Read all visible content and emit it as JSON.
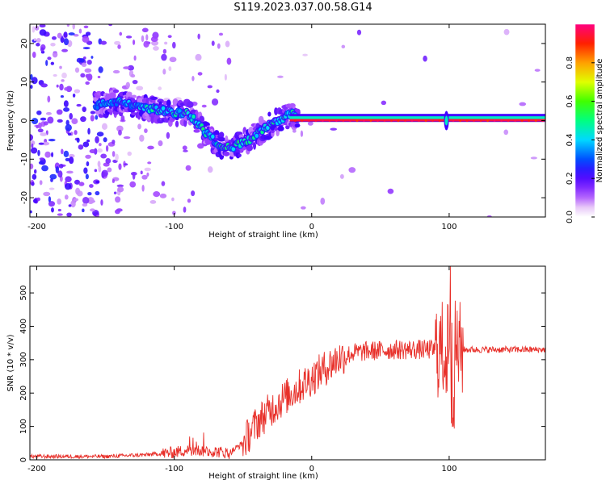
{
  "title": "S119.2023.037.00.58.G14",
  "chart_data": [
    {
      "type": "heatmap",
      "xlabel": "Height of straight line (km)",
      "ylabel": "Frequency (Hz)",
      "xlim": [
        -205,
        170
      ],
      "ylim": [
        -25,
        25
      ],
      "xticks": [
        -200,
        -100,
        0,
        100
      ],
      "yticks": [
        -20,
        -10,
        0,
        10,
        20
      ],
      "colorbar": {
        "label": "Normalized spectral amplitude",
        "range": [
          0,
          1
        ],
        "ticks": [
          "0.0",
          "0.2",
          "0.4",
          "0.6",
          "0.8"
        ]
      },
      "ridge": {
        "x": [
          -155,
          -145,
          -130,
          -115,
          -100,
          -90,
          -82,
          -75,
          -68,
          -60,
          -52,
          -45,
          -38,
          -30,
          -22,
          -15,
          -10,
          0,
          50,
          95,
          100,
          110,
          140,
          170
        ],
        "y": [
          4,
          5,
          4,
          3,
          2,
          2,
          -1,
          -4,
          -6,
          -7,
          -6,
          -5,
          -3,
          -1,
          0,
          2,
          0,
          0,
          0,
          0,
          0,
          0,
          0,
          0
        ]
      }
    },
    {
      "type": "line",
      "xlabel": "Height of straight line (km)",
      "ylabel": "SNR (10 * v/v)",
      "xlim": [
        -205,
        170
      ],
      "ylim": [
        0,
        580
      ],
      "xticks": [
        -200,
        -100,
        0,
        100
      ],
      "yticks": [
        0,
        100,
        200,
        300,
        400,
        500
      ],
      "color": "#e8302a",
      "trend": {
        "x": [
          -205,
          -150,
          -120,
          -100,
          -90,
          -70,
          -60,
          -50,
          -40,
          -30,
          -20,
          -10,
          0,
          10,
          20,
          30,
          40,
          60,
          90,
          100,
          110,
          140,
          170
        ],
        "y": [
          10,
          10,
          15,
          22,
          30,
          25,
          20,
          50,
          110,
          150,
          185,
          215,
          245,
          275,
          305,
          320,
          325,
          330,
          330,
          330,
          330,
          330,
          330
        ]
      }
    }
  ]
}
